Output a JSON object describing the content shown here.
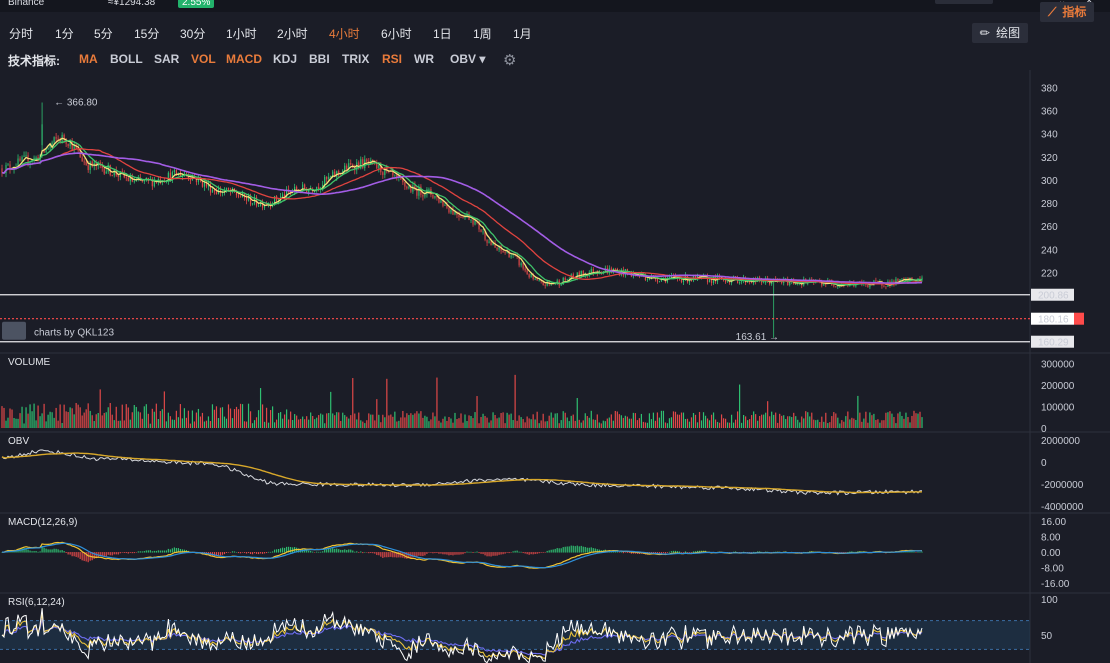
{
  "header": {
    "exchange": "Binance",
    "price_cny": "≈¥1294.38",
    "change_pct": "2.55%",
    "change_color": "#22b26b",
    "window_controls": [
      "⌄",
      "✕"
    ]
  },
  "periods": [
    "分时",
    "1分",
    "5分",
    "15分",
    "30分",
    "1小时",
    "2小时",
    "4小时",
    "6小时",
    "1日",
    "1周",
    "1月"
  ],
  "active_period": "4小时",
  "tools": {
    "draw_label": "绘图",
    "indicator_label": "指标",
    "draw_icon": "pencil-icon",
    "indicator_icon": "line-chart-icon"
  },
  "indicator_bar": {
    "label": "技术指标:",
    "items": [
      "MA",
      "BOLL",
      "SAR",
      "VOL",
      "MACD",
      "KDJ",
      "BBI",
      "TRIX",
      "RSI",
      "WR",
      "OBV ▾"
    ],
    "active": [
      "MA",
      "VOL",
      "MACD",
      "RSI"
    ],
    "settings_icon": "gear-icon"
  },
  "colors": {
    "up": "#2fbf71",
    "down": "#e04848",
    "ma5": "#f6e37a",
    "ma10": "#3fc46a",
    "ma30": "#e0433f",
    "ma60": "#a35de6",
    "obv": "#d7d9de",
    "obv_ma": "#d8a82a",
    "dif": "#f0c232",
    "dea": "#2e8fd9",
    "rsi6": "#ffffff",
    "rsi12": "#e7c13c",
    "rsi24": "#6e6ef2",
    "current_price": "#ff4b4b"
  },
  "chart_data": [
    {
      "type": "candlestick",
      "title": "",
      "watermark": "charts by QKL123",
      "yticks": [
        380,
        360,
        340,
        320,
        300,
        280,
        260,
        240,
        220
      ],
      "ylim": [
        154,
        388
      ],
      "points": 460,
      "close_anchors": [
        [
          0,
          310
        ],
        [
          15,
          318
        ],
        [
          30,
          336
        ],
        [
          45,
          312
        ],
        [
          70,
          298
        ],
        [
          90,
          305
        ],
        [
          110,
          290
        ],
        [
          130,
          280
        ],
        [
          150,
          292
        ],
        [
          180,
          314
        ],
        [
          210,
          290
        ],
        [
          230,
          270
        ],
        [
          250,
          238
        ],
        [
          270,
          210
        ],
        [
          300,
          222
        ],
        [
          330,
          215
        ],
        [
          360,
          214
        ],
        [
          390,
          212
        ],
        [
          430,
          210
        ],
        [
          470,
          215
        ],
        [
          510,
          232
        ],
        [
          550,
          220
        ],
        [
          580,
          210
        ],
        [
          610,
          205
        ],
        [
          640,
          198
        ],
        [
          660,
          201
        ],
        [
          700,
          194
        ],
        [
          740,
          186
        ],
        [
          780,
          172
        ],
        [
          800,
          175
        ],
        [
          830,
          178
        ],
        [
          870,
          178
        ],
        [
          900,
          182
        ],
        [
          920,
          183
        ]
      ],
      "high_label": "366.80",
      "high_value": 366.8,
      "low_label": "163.61",
      "low_value": 163.61,
      "hlines": [
        {
          "value": 200.86,
          "label": "200.86"
        },
        {
          "value": 180.16,
          "label": "180.16",
          "current": true
        },
        {
          "value": 160.29,
          "label": "160.29"
        }
      ],
      "series": [
        {
          "name": "MA5",
          "period": 5
        },
        {
          "name": "MA10",
          "period": 10
        },
        {
          "name": "MA30",
          "period": 30
        },
        {
          "name": "MA60",
          "period": 60
        }
      ]
    },
    {
      "type": "bar",
      "title": "VOLUME",
      "yticks": [
        "300000",
        "200000",
        "100000",
        "0"
      ],
      "ylim": [
        0,
        320000
      ],
      "series": [
        {
          "name": "VOLUME"
        }
      ]
    },
    {
      "type": "line",
      "title": "OBV",
      "yticks": [
        "2000000",
        "0",
        "-2000000",
        "-4000000"
      ],
      "ylim": [
        -4100000,
        2200000
      ],
      "anchors": [
        [
          0,
          400000
        ],
        [
          40,
          1000000
        ],
        [
          100,
          300000
        ],
        [
          200,
          -100000
        ],
        [
          280,
          -2000000
        ],
        [
          400,
          -2100000
        ],
        [
          500,
          -1600000
        ],
        [
          600,
          -2100000
        ],
        [
          700,
          -2300000
        ],
        [
          820,
          -2800000
        ],
        [
          920,
          -2700000
        ]
      ],
      "series": [
        {
          "name": "OBV"
        },
        {
          "name": "OBV MA"
        }
      ]
    },
    {
      "type": "line",
      "title": "MACD(12,26,9)",
      "yticks": [
        "16.00",
        "8.00",
        "0.00",
        "-8.00",
        "-16.00"
      ],
      "ylim": [
        -19,
        17
      ],
      "series": [
        {
          "name": "DIF"
        },
        {
          "name": "DEA"
        },
        {
          "name": "MACD"
        }
      ]
    },
    {
      "type": "line",
      "title": "RSI(6,12,24)",
      "yticks": [
        "100",
        "50",
        "0"
      ],
      "ylim": [
        0,
        100
      ],
      "band": [
        30,
        70
      ],
      "series": [
        {
          "name": "RSI6"
        },
        {
          "name": "RSI12"
        },
        {
          "name": "RSI24"
        }
      ]
    }
  ]
}
